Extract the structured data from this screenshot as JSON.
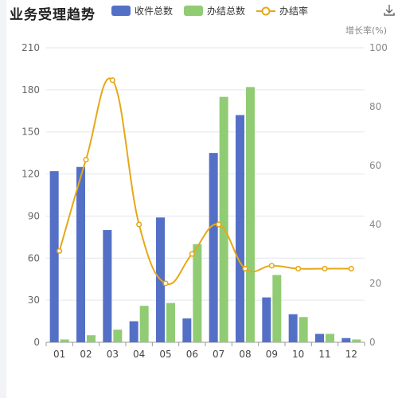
{
  "title": "业务受理趋势",
  "legend": {
    "items": [
      {
        "label": "收件总数",
        "color": "#5470c6",
        "kind": "bar"
      },
      {
        "label": "办结总数",
        "color": "#91cc75",
        "kind": "bar"
      },
      {
        "label": "办结率",
        "color": "#e6a817",
        "kind": "line"
      }
    ]
  },
  "icons": {
    "download": "download-icon"
  },
  "chart_data": {
    "type": "bar",
    "categories": [
      "01",
      "02",
      "03",
      "04",
      "05",
      "06",
      "07",
      "08",
      "09",
      "10",
      "11",
      "12"
    ],
    "series": [
      {
        "name": "收件总数",
        "type": "bar",
        "axis": "left",
        "color": "#5470c6",
        "values": [
          122,
          125,
          80,
          15,
          89,
          17,
          135,
          162,
          32,
          20,
          6,
          3
        ]
      },
      {
        "name": "办结总数",
        "type": "bar",
        "axis": "left",
        "color": "#91cc75",
        "values": [
          2,
          5,
          9,
          26,
          28,
          70,
          175,
          182,
          48,
          18,
          6,
          2
        ]
      },
      {
        "name": "办结率",
        "type": "line",
        "axis": "right",
        "color": "#e6a817",
        "smooth": true,
        "values": [
          31,
          62,
          89,
          40,
          20,
          30,
          40,
          25,
          26,
          25,
          25,
          25
        ]
      }
    ],
    "y_left": {
      "min": 0,
      "max": 210,
      "ticks": [
        0,
        30,
        60,
        90,
        120,
        150,
        180,
        210
      ]
    },
    "y_right": {
      "label": "增长率(%)",
      "min": 0,
      "max": 100,
      "ticks": [
        0,
        20,
        40,
        60,
        80,
        100
      ]
    },
    "grid": true,
    "legend_position": "top"
  }
}
